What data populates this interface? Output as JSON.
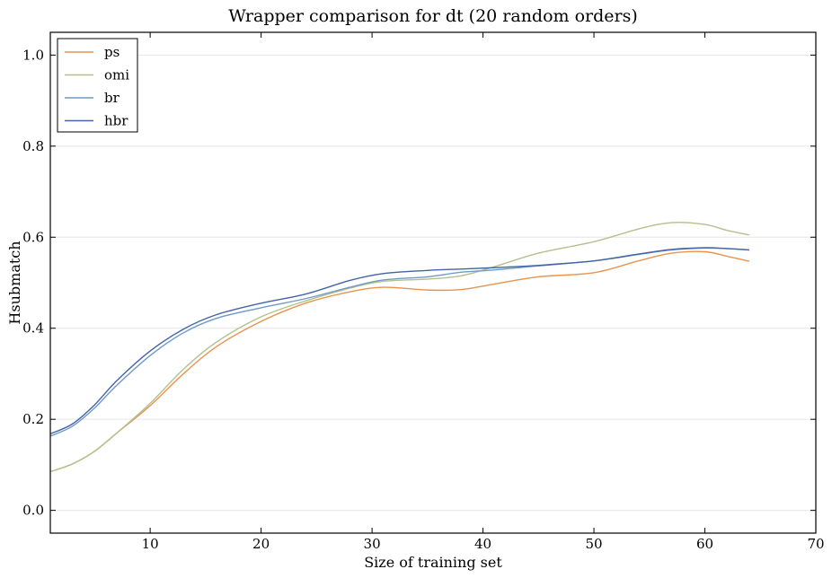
{
  "chart_data": {
    "type": "line",
    "title": "Wrapper comparison for dt (20 random orders)",
    "xlabel": "Size of training set",
    "ylabel": "Hsubmatch",
    "xlim": [
      1,
      70
    ],
    "ylim": [
      -0.05,
      1.05
    ],
    "xticks": [
      10,
      20,
      30,
      40,
      50,
      60,
      70
    ],
    "yticks": [
      0.0,
      0.2,
      0.4,
      0.6,
      0.8,
      1.0
    ],
    "grid": "horizontal",
    "legend": "top-left",
    "x": [
      1,
      3,
      5,
      7,
      10,
      13,
      16,
      20,
      24,
      28,
      31,
      35,
      38,
      41,
      45,
      50,
      54,
      57,
      60,
      62,
      64
    ],
    "series": [
      {
        "name": "ps",
        "color": "#e8944e",
        "values": [
          0.085,
          0.102,
          0.13,
          0.17,
          0.23,
          0.3,
          0.36,
          0.415,
          0.455,
          0.48,
          0.49,
          0.484,
          0.485,
          0.497,
          0.513,
          0.522,
          0.548,
          0.565,
          0.568,
          0.558,
          0.547
        ]
      },
      {
        "name": "omi",
        "color": "#b3c08e",
        "values": [
          0.085,
          0.102,
          0.13,
          0.17,
          0.235,
          0.31,
          0.37,
          0.425,
          0.46,
          0.488,
          0.503,
          0.508,
          0.515,
          0.535,
          0.565,
          0.59,
          0.618,
          0.632,
          0.628,
          0.615,
          0.605
        ]
      },
      {
        "name": "br",
        "color": "#6f9ac6",
        "values": [
          0.163,
          0.185,
          0.225,
          0.275,
          0.34,
          0.39,
          0.422,
          0.445,
          0.465,
          0.49,
          0.506,
          0.513,
          0.523,
          0.528,
          0.537,
          0.548,
          0.562,
          0.572,
          0.576,
          0.575,
          0.572
        ]
      },
      {
        "name": "hbr",
        "color": "#4563a8",
        "values": [
          0.168,
          0.19,
          0.232,
          0.285,
          0.35,
          0.398,
          0.43,
          0.455,
          0.475,
          0.505,
          0.52,
          0.527,
          0.53,
          0.533,
          0.538,
          0.548,
          0.563,
          0.573,
          0.577,
          0.575,
          0.572
        ]
      }
    ]
  }
}
